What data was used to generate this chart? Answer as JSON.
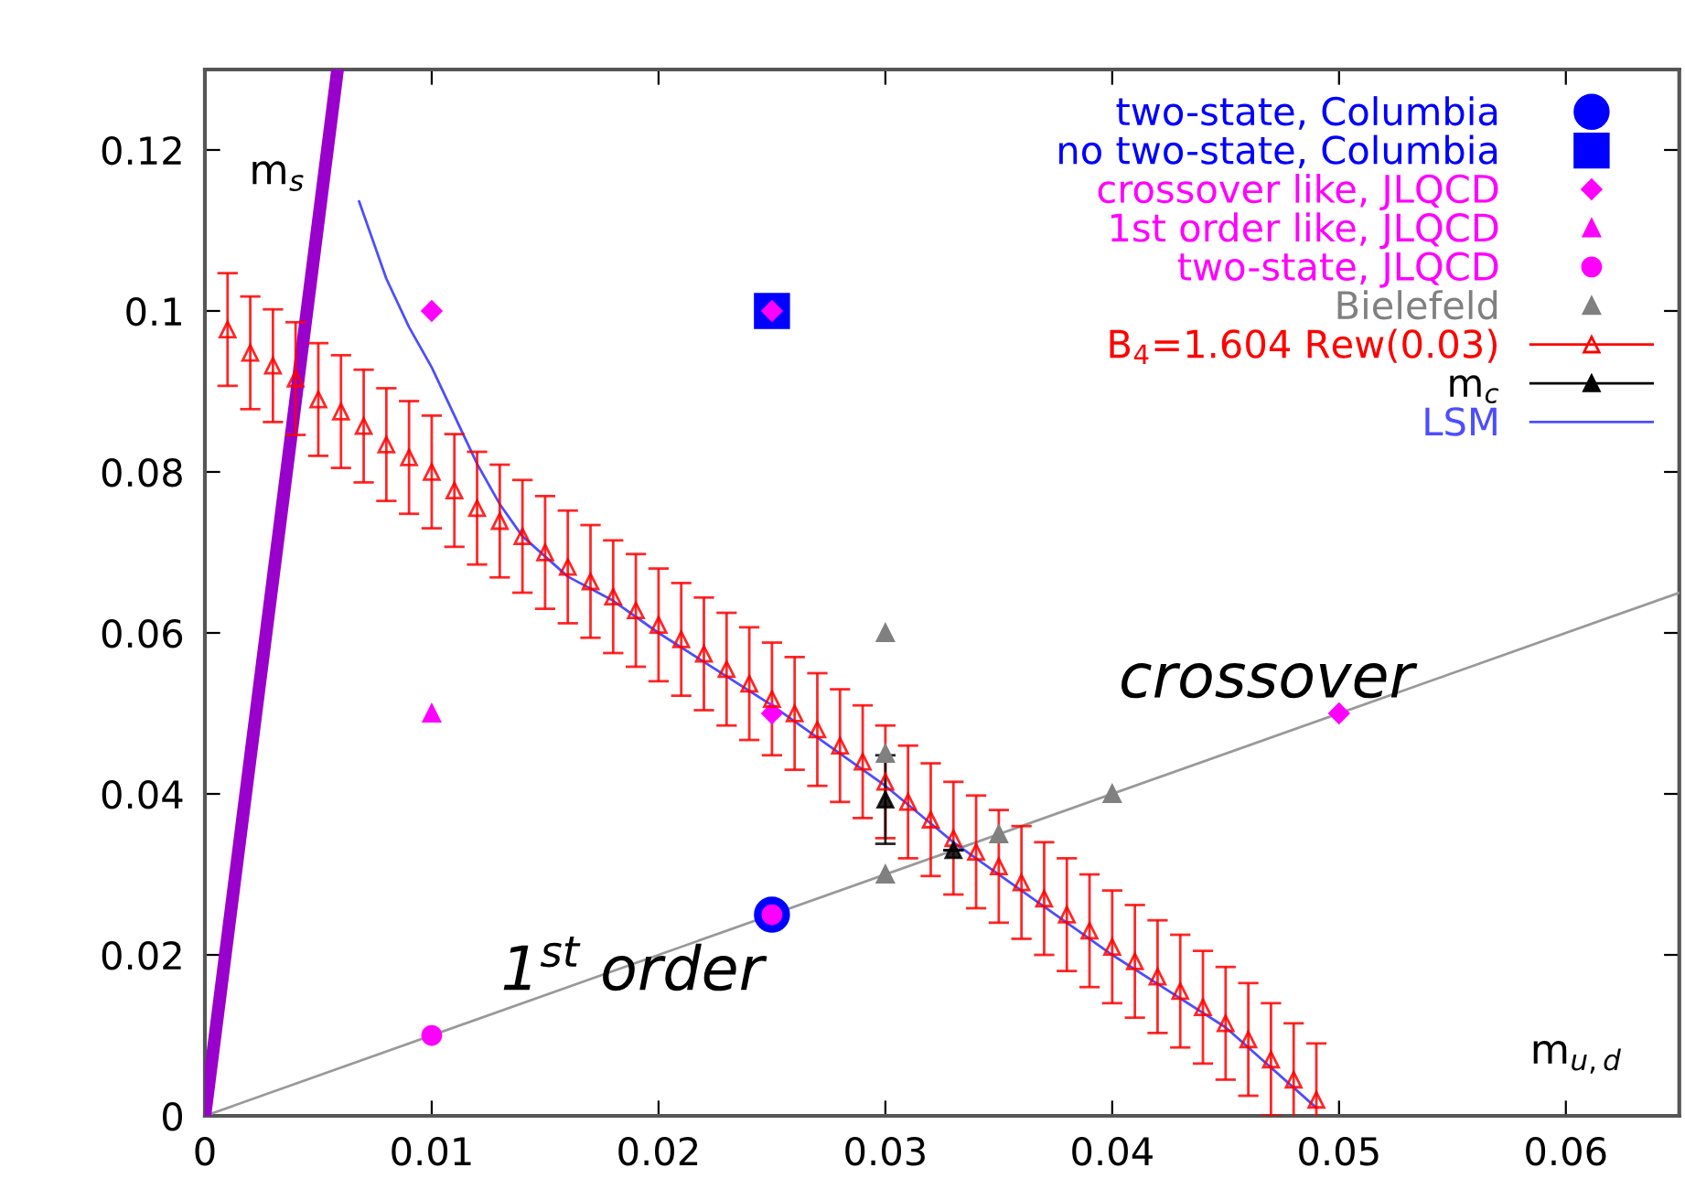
{
  "chart_data": {
    "type": "scatter",
    "xlabel": "m$_{u,d}$",
    "ylabel": "m$_{s}$",
    "annotations": [
      "crossover",
      "1$^{st}$ order"
    ],
    "xlim": [
      0,
      0.065
    ],
    "ylim": [
      0,
      0.13
    ],
    "xticks": [
      0,
      0.01,
      0.02,
      0.03,
      0.04,
      0.05,
      0.06
    ],
    "yticks": [
      0,
      0.02,
      0.04,
      0.06,
      0.08,
      0.1,
      0.12
    ],
    "grid": false,
    "legend": "top right",
    "series": [
      {
        "type": "line",
        "color": "#999999",
        "x": [
          0,
          0.065
        ],
        "values": [
          0,
          0.065
        ],
        "marker": "none",
        "line_style": "solid"
      },
      {
        "type": "line",
        "color": "#9900cc",
        "x": [
          0,
          0.00585
        ],
        "values": [
          0,
          0.13
        ],
        "marker": "none",
        "line_style": "solid"
      },
      {
        "name": "two-state, Columbia",
        "color": "#0000ff",
        "marker": "circle",
        "x": [
          0.025
        ],
        "values": [
          0.025
        ]
      },
      {
        "name": "no two-state, Columbia",
        "color": "#0000ff",
        "marker": "square",
        "x": [
          0.025
        ],
        "values": [
          0.1
        ]
      },
      {
        "name": "crossover like, JLQCD",
        "color": "#ff00ff",
        "marker": "diamond",
        "x": [
          0.01,
          0.025,
          0.025,
          0.05
        ],
        "values": [
          0.1,
          0.1,
          0.05,
          0.05
        ]
      },
      {
        "name": "1st order like, JLQCD",
        "color": "#ff00ff",
        "marker": "triangle",
        "x": [
          0.01
        ],
        "values": [
          0.05
        ]
      },
      {
        "name": "two-state, JLQCD",
        "color": "#ff00ff",
        "marker": "circle",
        "x": [
          0.01,
          0.025
        ],
        "values": [
          0.01,
          0.025
        ]
      },
      {
        "name": "Bielefeld",
        "color": "#808080",
        "marker": "triangle",
        "x": [
          0.03,
          0.03,
          0.03,
          0.035,
          0.04
        ],
        "values": [
          0.06,
          0.045,
          0.03,
          0.035,
          0.04
        ]
      },
      {
        "name": "B$_{4}$=1.604 Rew(0.03)",
        "color": "#ff0000",
        "marker": "triangle",
        "x": [
          0.001,
          0.002,
          0.003,
          0.004,
          0.005,
          0.006,
          0.007,
          0.008,
          0.009,
          0.01,
          0.011,
          0.012,
          0.013,
          0.014,
          0.015,
          0.016,
          0.017,
          0.018,
          0.019,
          0.02,
          0.021,
          0.022,
          0.023,
          0.024,
          0.025,
          0.026,
          0.027,
          0.028,
          0.029,
          0.03,
          0.031,
          0.032,
          0.033,
          0.034,
          0.035,
          0.036,
          0.037,
          0.038,
          0.039,
          0.04,
          0.041,
          0.042,
          0.043,
          0.044,
          0.045,
          0.046,
          0.047,
          0.048,
          0.049
        ],
        "values": [
          0.0977,
          0.0948,
          0.0932,
          0.0916,
          0.089,
          0.0875,
          0.0857,
          0.0834,
          0.0818,
          0.08,
          0.0777,
          0.0755,
          0.0739,
          0.072,
          0.07,
          0.0682,
          0.0664,
          0.0645,
          0.0628,
          0.061,
          0.0592,
          0.0574,
          0.0555,
          0.0537,
          0.0518,
          0.05,
          0.048,
          0.046,
          0.044,
          0.0415,
          0.039,
          0.0368,
          0.0345,
          0.0328,
          0.031,
          0.029,
          0.027,
          0.025,
          0.023,
          0.021,
          0.0192,
          0.0173,
          0.0155,
          0.0135,
          0.0115,
          0.0095,
          0.007,
          0.0045,
          0.002
        ],
        "errors": [
          0.007,
          0.007,
          0.007,
          0.007,
          0.007,
          0.007,
          0.007,
          0.007,
          0.007,
          0.007,
          0.007,
          0.007,
          0.007,
          0.007,
          0.007,
          0.007,
          0.007,
          0.007,
          0.007,
          0.007,
          0.007,
          0.007,
          0.007,
          0.007,
          0.007,
          0.007,
          0.007,
          0.007,
          0.007,
          0.007,
          0.007,
          0.007,
          0.007,
          0.007,
          0.007,
          0.007,
          0.007,
          0.007,
          0.007,
          0.007,
          0.007,
          0.007,
          0.007,
          0.007,
          0.007,
          0.007,
          0.007,
          0.007,
          0.007
        ]
      },
      {
        "name": "m$_{c}$",
        "color": "#000000",
        "marker": "triangle",
        "x": [
          0.03,
          0.033
        ],
        "values": [
          0.0393,
          0.033
        ],
        "errors": [
          0.0055,
          null
        ]
      },
      {
        "name": "LSM",
        "type": "line",
        "color": "#4d4dff",
        "marker": "none",
        "line_style": "solid",
        "x": [
          0.0068,
          0.008,
          0.009,
          0.01,
          0.011,
          0.012,
          0.013,
          0.014,
          0.016,
          0.018,
          0.02,
          0.025,
          0.03,
          0.033,
          0.035,
          0.04,
          0.045,
          0.049
        ],
        "values": [
          0.1136,
          0.104,
          0.098,
          0.093,
          0.087,
          0.081,
          0.076,
          0.072,
          0.067,
          0.064,
          0.06,
          0.051,
          0.041,
          0.034,
          0.03,
          0.02,
          0.011,
          0.001
        ]
      }
    ]
  }
}
